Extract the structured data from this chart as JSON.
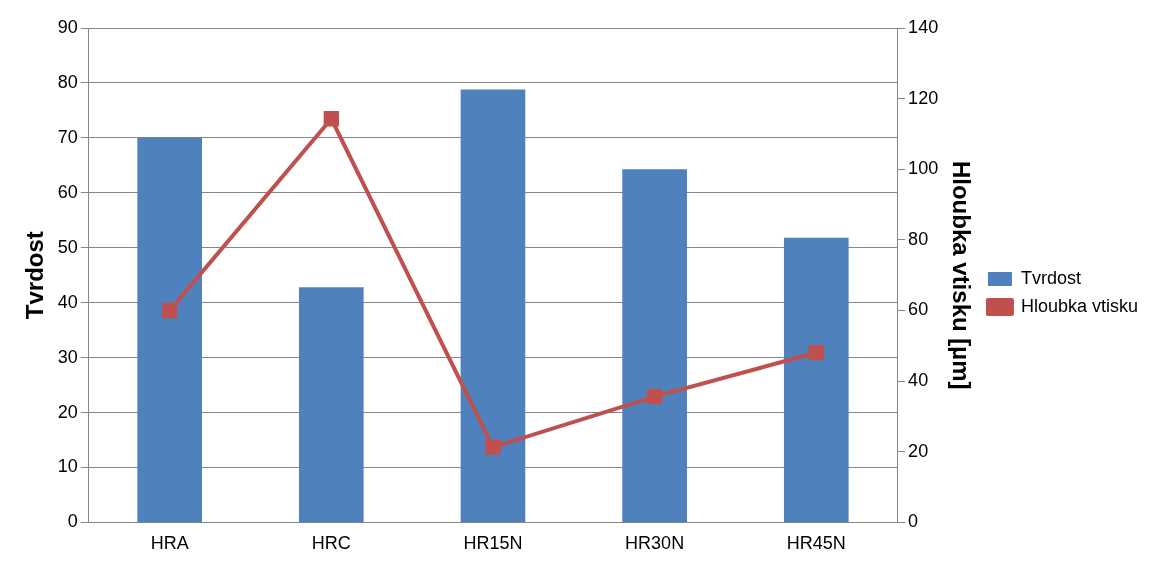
{
  "chart_data": {
    "type": "bar",
    "categories": [
      "HRA",
      "HRC",
      "HR15N",
      "HR30N",
      "HR45N"
    ],
    "series": [
      {
        "name": "Tvrdost",
        "color": "#4f81bd",
        "values": [
          70,
          42.8,
          78.8,
          64.3,
          51.8
        ]
      },
      {
        "name": "Hloubka vtisku",
        "type": "line",
        "axis": "y2",
        "color": "#c0504d",
        "values": [
          60,
          114.3,
          21.3,
          35.6,
          48.1
        ]
      }
    ],
    "ylabel": "Tvrdost",
    "y2label": "Hloubka vtisku [µm]",
    "ylim": [
      0,
      90
    ],
    "yticks": [
      0,
      10,
      20,
      30,
      40,
      50,
      60,
      70,
      80,
      90
    ],
    "y2lim": [
      0,
      140
    ],
    "y2ticks": [
      0,
      20,
      40,
      60,
      80,
      100,
      120,
      140
    ],
    "grid": "y",
    "legend": "right",
    "marker": "square"
  }
}
